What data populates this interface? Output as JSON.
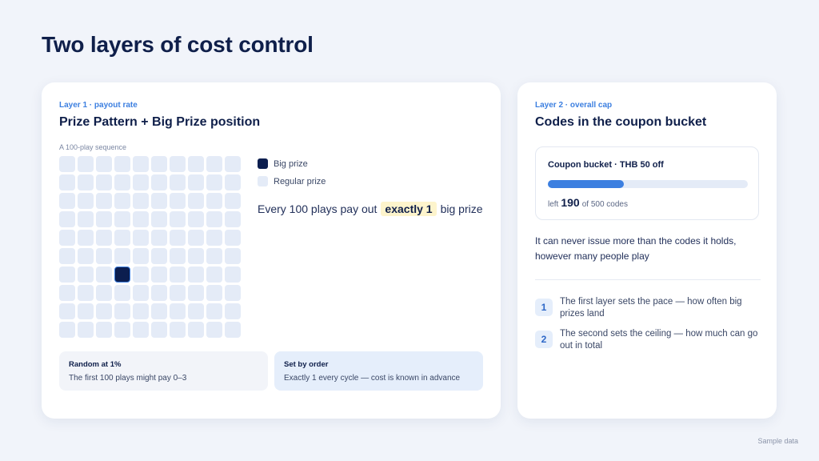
{
  "page": {
    "title": "Two layers of cost control",
    "footnote": "Sample data"
  },
  "layer1": {
    "eyebrow": "Layer 1 · payout rate",
    "title": "Prize Pattern + Big Prize position",
    "grid_label": "A 100-play sequence",
    "grid": {
      "rows": 10,
      "cols": 10,
      "big_prize_index": 63
    },
    "legend": {
      "big": "Big prize",
      "regular": "Regular prize"
    },
    "summary": {
      "before": "Every 100 plays pay out",
      "highlight": "exactly 1",
      "after": "big prize"
    },
    "random": {
      "title": "Random at 1%",
      "desc": "The first 100 plays might pay 0–3"
    },
    "order": {
      "title": "Set by order",
      "desc": "Exactly 1 every cycle — cost is known in advance"
    }
  },
  "layer2": {
    "eyebrow": "Layer 2 · overall cap",
    "title": "Codes in the coupon bucket",
    "bucket": {
      "title": "Coupon bucket · THB 50 off",
      "left_label": "left",
      "left": 190,
      "of_label": "of 500 codes",
      "total": 500
    },
    "note": "It can never issue more than the codes it holds, however many people play",
    "points": [
      {
        "num": "1",
        "text": "The first layer sets the pace — how often big prizes land"
      },
      {
        "num": "2",
        "text": "The second sets the ceiling — how much can go out in total"
      }
    ]
  },
  "colors": {
    "accent": "#3c7fe0",
    "big_prize": "#0c1e4f",
    "regular_prize": "#e4ebf7",
    "highlight": "#fdf4cc"
  }
}
